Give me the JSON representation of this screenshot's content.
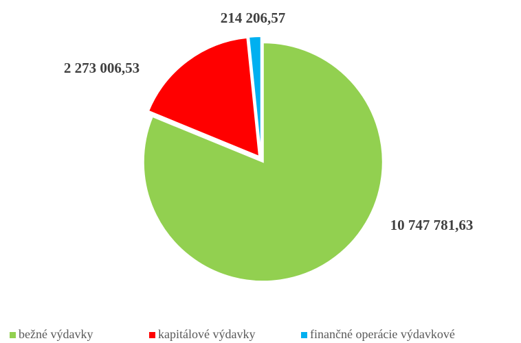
{
  "chart_data": {
    "type": "pie",
    "categories": [
      "bežné výdavky",
      "kapitálové výdavky",
      "finančné operácie výdavkové"
    ],
    "values": [
      10747781.63,
      2273006.53,
      214206.57
    ],
    "value_labels": [
      "10 747 781,63",
      "2 273 006,53",
      "214 206,57"
    ],
    "colors": [
      "#92d050",
      "#ff0000",
      "#00b0f0"
    ],
    "legend": "bottom"
  }
}
